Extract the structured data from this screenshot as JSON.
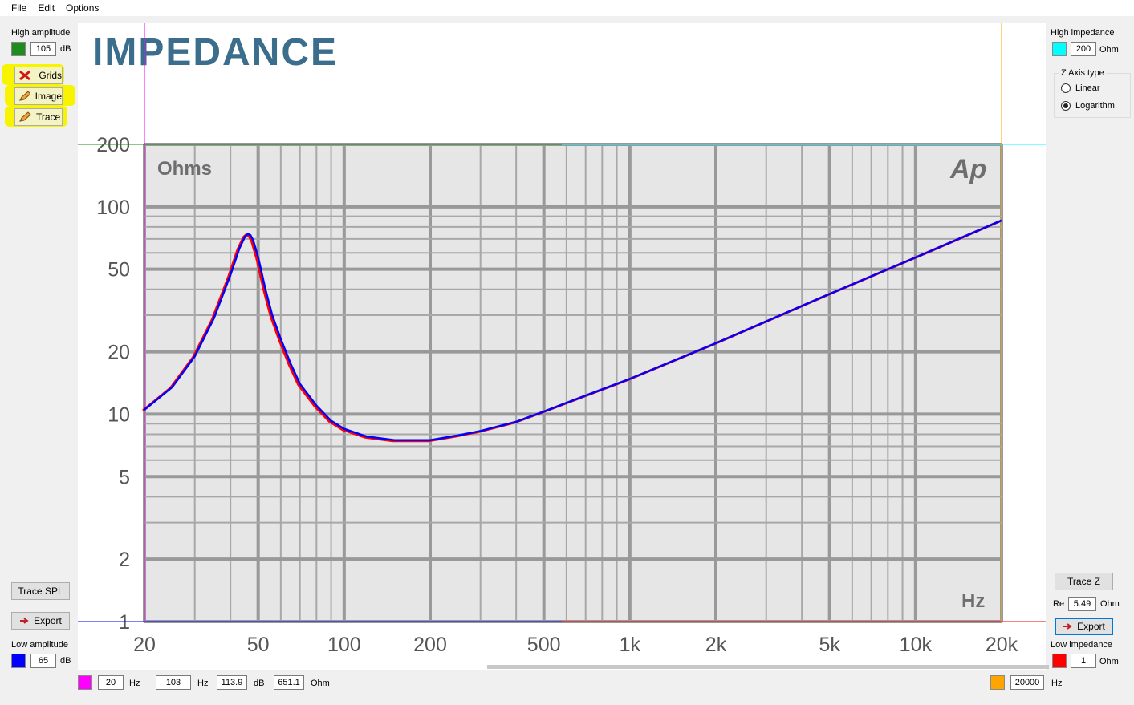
{
  "menu": {
    "file": "File",
    "edit": "Edit",
    "options": "Options"
  },
  "left_panel": {
    "high_amplitude_label": "High amplitude",
    "high_amplitude_value": "105",
    "high_amplitude_unit": "dB",
    "high_amplitude_color": "#1e8c1e",
    "grids_button": "Grids",
    "image_button": "Image",
    "trace_button": "Trace",
    "trace_spl_button": "Trace SPL",
    "export_button": "Export",
    "low_amplitude_label": "Low amplitude",
    "low_amplitude_value": "65",
    "low_amplitude_unit": "dB",
    "low_amplitude_color": "#0000ff"
  },
  "right_panel": {
    "high_impedance_label": "High impedance",
    "high_impedance_value": "200",
    "high_impedance_unit": "Ohm",
    "high_impedance_color": "#00ffff",
    "z_axis_group_label": "Z Axis type",
    "z_axis_linear": "Linear",
    "z_axis_log": "Logarithm",
    "z_axis_selected": "Logarithm",
    "trace_z_button": "Trace Z",
    "re_label": "Re",
    "re_value": "5.49",
    "re_unit": "Ohm",
    "export_button": "Export",
    "low_impedance_label": "Low impedance",
    "low_impedance_value": "1",
    "low_impedance_unit": "Ohm",
    "low_impedance_color": "#ff0000"
  },
  "bottom_bar": {
    "low_freq_color": "#ff00ff",
    "low_freq_value": "20",
    "low_freq_unit": "Hz",
    "cursor_freq_value": "103",
    "cursor_freq_unit": "Hz",
    "cursor_db_value": "113.9",
    "cursor_db_unit": "dB",
    "cursor_ohm_value": "651.1",
    "cursor_ohm_unit": "Ohm",
    "high_freq_color": "#ffa500",
    "high_freq_value": "20000",
    "high_freq_unit": "Hz"
  },
  "chart_data": {
    "type": "line",
    "title": "IMPEDANCE",
    "ylabel": "Ohms",
    "xlabel": "Hz",
    "logo": "Ap",
    "x_scale": "log",
    "y_scale": "log",
    "xlim": [
      20,
      20000
    ],
    "ylim": [
      1,
      200
    ],
    "x_ticks": [
      20,
      50,
      100,
      200,
      500,
      1000,
      2000,
      5000,
      10000,
      20000
    ],
    "x_tick_labels": [
      "20",
      "50",
      "100",
      "200",
      "500",
      "1k",
      "2k",
      "5k",
      "10k",
      "20k"
    ],
    "y_ticks": [
      1,
      2,
      5,
      10,
      20,
      50,
      100,
      200
    ],
    "y_tick_labels": [
      "1",
      "2",
      "5",
      "10",
      "20",
      "50",
      "100",
      "200"
    ],
    "grid": true,
    "colors": {
      "trace": "#0000ff",
      "reference": "#ff0000"
    },
    "x": [
      20,
      25,
      30,
      35,
      40,
      43,
      45,
      46,
      47,
      48,
      50,
      53,
      56,
      60,
      65,
      70,
      80,
      90,
      100,
      120,
      150,
      200,
      250,
      300,
      400,
      500,
      700,
      1000,
      2000,
      5000,
      10000,
      20000
    ],
    "series": [
      {
        "values": [
          10.5,
          13.5,
          19,
          29,
          47,
          63,
          72,
          74,
          73,
          69,
          57,
          40,
          30,
          23,
          17.5,
          14,
          11,
          9.3,
          8.5,
          7.8,
          7.5,
          7.5,
          7.9,
          8.3,
          9.2,
          10.3,
          12.3,
          14.8,
          22,
          38,
          57,
          86
        ]
      }
    ]
  }
}
